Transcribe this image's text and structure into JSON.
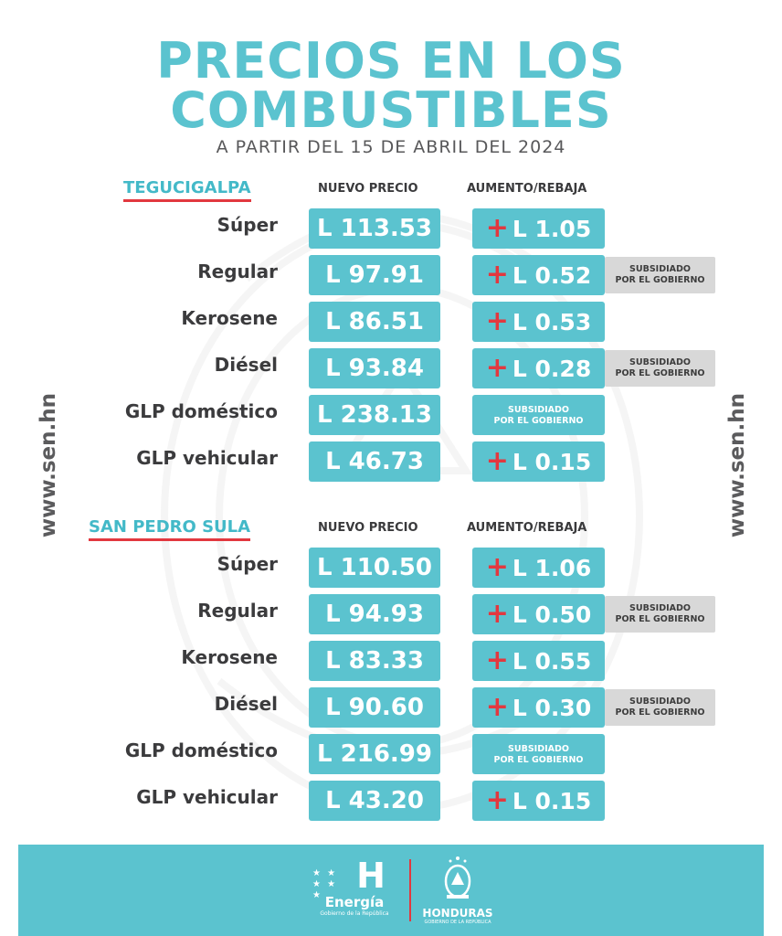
{
  "title_line1": "PRECIOS EN LOS",
  "title_line2": "COMBUSTIBLES",
  "subtitle": "A PARTIR DEL 15 DE ABRIL DEL 2024",
  "website": "www.sen.hn",
  "col_new_price": "NUEVO PRECIO",
  "col_change": "AUMENTO/REBAJA",
  "subsidy_line1": "SUBSIDIADO",
  "subsidy_line2": "POR EL GOBIERNO",
  "cities": [
    {
      "name": "TEGUCIGALPA",
      "rows": [
        {
          "fuel": "Súper",
          "price": "L 113.53",
          "change": "L 1.05"
        },
        {
          "fuel": "Regular",
          "price": "L 97.91",
          "change": "L 0.52",
          "subsidy_badge": true
        },
        {
          "fuel": "Kerosene",
          "price": "L 86.51",
          "change": "L 0.53"
        },
        {
          "fuel": "Diésel",
          "price": "L 93.84",
          "change": "L 0.28",
          "subsidy_badge": true
        },
        {
          "fuel": "GLP doméstico",
          "price": "L 238.13",
          "change_is_subsidy": true
        },
        {
          "fuel": "GLP vehicular",
          "price": "L 46.73",
          "change": "L 0.15"
        }
      ]
    },
    {
      "name": "SAN PEDRO SULA",
      "rows": [
        {
          "fuel": "Súper",
          "price": "L 110.50",
          "change": "L 1.06"
        },
        {
          "fuel": "Regular",
          "price": "L 94.93",
          "change": "L 0.50",
          "subsidy_badge": true
        },
        {
          "fuel": "Kerosene",
          "price": "L 83.33",
          "change": "L 0.55"
        },
        {
          "fuel": "Diésel",
          "price": "L 90.60",
          "change": "L 0.30",
          "subsidy_badge": true
        },
        {
          "fuel": "GLP doméstico",
          "price": "L 216.99",
          "change_is_subsidy": true
        },
        {
          "fuel": "GLP vehicular",
          "price": "L 43.20",
          "change": "L 0.15"
        }
      ]
    }
  ],
  "footer": {
    "energia_letter": "H",
    "energia_name": "Energía",
    "energia_sub": "Gobierno de la República",
    "honduras_name": "HONDURAS",
    "honduras_sub": "GOBIERNO DE LA REPÚBLICA"
  },
  "colors": {
    "accent": "#5bc3cf",
    "red": "#e2383f",
    "badge": "#d8d8d8"
  }
}
